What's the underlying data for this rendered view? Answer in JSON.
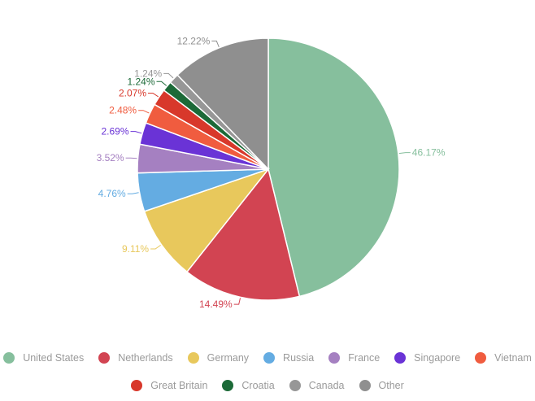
{
  "chart_data": {
    "type": "pie",
    "title": "",
    "slices": [
      {
        "name": "United States",
        "value": 46.17,
        "label": "46.17%",
        "color": "#86bf9d"
      },
      {
        "name": "Netherlands",
        "value": 14.49,
        "label": "14.49%",
        "color": "#d24452"
      },
      {
        "name": "Germany",
        "value": 9.11,
        "label": "9.11%",
        "color": "#e8c85c"
      },
      {
        "name": "Russia",
        "value": 4.76,
        "label": "4.76%",
        "color": "#64ace2"
      },
      {
        "name": "France",
        "value": 3.52,
        "label": "3.52%",
        "color": "#a580c1"
      },
      {
        "name": "Singapore",
        "value": 2.69,
        "label": "2.69%",
        "color": "#6a33d6"
      },
      {
        "name": "Vietnam",
        "value": 2.48,
        "label": "2.48%",
        "color": "#f05c3f"
      },
      {
        "name": "Great Britain",
        "value": 2.07,
        "label": "2.07%",
        "color": "#d8382b"
      },
      {
        "name": "Croatia",
        "value": 1.24,
        "label": "1.24%",
        "color": "#1c6a38"
      },
      {
        "name": "Canada",
        "value": 1.24,
        "label": "1.24%",
        "color": "#979797"
      },
      {
        "name": "Other",
        "value": 12.22,
        "label": "12.22%",
        "color": "#8f8f8f"
      }
    ],
    "legend_position": "bottom"
  }
}
